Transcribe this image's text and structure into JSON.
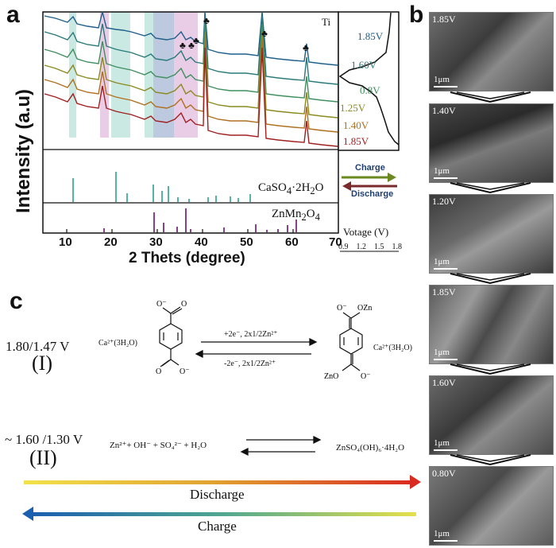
{
  "panel_a": {
    "letter": "a",
    "ylabel": "Intensity (a.u)",
    "xlabel": "2 Thets (degree)",
    "xticks": [
      "10",
      "20",
      "30",
      "40",
      "50",
      "60",
      "70"
    ],
    "ti_label": "Ti",
    "ref_label_1_main": "CaSO",
    "ref_label_1_sub": "4",
    "ref_label_1_rest": "·2H",
    "ref_label_1_sub2": "2",
    "ref_label_1_end": "O",
    "ref_label_2_main": "ZnMn",
    "ref_label_2_sub": "2",
    "ref_label_2_rest": "O",
    "ref_label_2_sub2": "4",
    "curve_labels": [
      "1.85V",
      "1.60V",
      "0.8V",
      "1.25V",
      "1.40V",
      "1.85V"
    ],
    "curve_colors": [
      "#1f5f8b",
      "#2a7a7a",
      "#3f8f5f",
      "#8a8a20",
      "#b07020",
      "#a02020"
    ],
    "charge_label": "Charge",
    "discharge_label": "Discharge",
    "voltage_label": "Votage (V)",
    "voltage_ticks": [
      "0.9",
      "1.2",
      "1.5",
      "1.8"
    ],
    "caso4_stick_color": "#2aa08a",
    "znmn2o4_stick_color": "#7a2a7a"
  },
  "panel_b": {
    "letter": "b",
    "images": [
      {
        "label": "1.85V",
        "scale": "1μm"
      },
      {
        "label": "1.40V",
        "scale": "1μm"
      },
      {
        "label": "1.20V",
        "scale": "1μm"
      },
      {
        "label": "1.85V",
        "scale": "1μm"
      },
      {
        "label": "1.60V",
        "scale": "1μm"
      },
      {
        "label": "0.80V",
        "scale": "1μm"
      }
    ]
  },
  "panel_c": {
    "letter": "c",
    "r1_voltage": "1.80/1.47 V",
    "r1_numeral": "(I)",
    "r1_forward": "+2e⁻, 2x1/2Zn²⁺",
    "r1_reverse": "-2e⁻, 2x1/2Zn²⁺",
    "r1_left_cation": "Ca²⁺(3H₂O)",
    "r1_right_cation": "Ca²⁺(3H₂O)",
    "r1_o_minus": "O⁻",
    "r1_ozn_top": "OZn",
    "r1_zno_bottom": "ZnO",
    "r2_voltage": "~ 1.60 /1.30 V",
    "r2_numeral": "(II)",
    "r2_reactants": "Zn²⁺+ OH⁻ + SO₄²⁻ + H₂O",
    "r2_product": "ZnSO₄(OH)₆·4H₂O",
    "discharge": "Discharge",
    "charge": "Charge"
  }
}
